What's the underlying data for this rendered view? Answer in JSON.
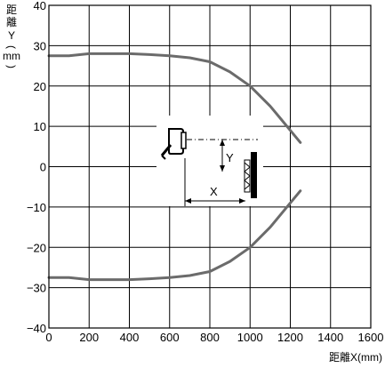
{
  "chart_data": {
    "type": "line",
    "title": "",
    "xlabel": "距離X(mm)",
    "ylabel_chars": [
      "距",
      "離",
      "Y",
      "(",
      "mm",
      ")"
    ],
    "xlim": [
      0,
      1600
    ],
    "ylim": [
      -40,
      40
    ],
    "x_ticks": [
      0,
      200,
      400,
      600,
      800,
      1000,
      1200,
      1400,
      1600
    ],
    "y_ticks": [
      40,
      30,
      20,
      10,
      0,
      -10,
      -20,
      -30,
      -40
    ],
    "y_tick_labels": [
      "40",
      "30",
      "20",
      "10",
      "0",
      "−10",
      "−20",
      "−30",
      "−40"
    ],
    "grid": true,
    "series": [
      {
        "color": "#6b6b6b",
        "points": [
          [
            0,
            27.5
          ],
          [
            100,
            27.5
          ],
          [
            200,
            28
          ],
          [
            300,
            28
          ],
          [
            400,
            28
          ],
          [
            500,
            27.8
          ],
          [
            600,
            27.5
          ],
          [
            700,
            27
          ],
          [
            800,
            26
          ],
          [
            900,
            23.5
          ],
          [
            1000,
            20
          ],
          [
            1100,
            15
          ],
          [
            1150,
            12
          ],
          [
            1200,
            9
          ],
          [
            1250,
            6
          ]
        ]
      },
      {
        "color": "#6b6b6b",
        "points": [
          [
            0,
            -27.5
          ],
          [
            100,
            -27.5
          ],
          [
            200,
            -28
          ],
          [
            300,
            -28
          ],
          [
            400,
            -28
          ],
          [
            500,
            -27.8
          ],
          [
            600,
            -27.5
          ],
          [
            700,
            -27
          ],
          [
            800,
            -26
          ],
          [
            900,
            -23.5
          ],
          [
            1000,
            -20
          ],
          [
            1100,
            -15
          ],
          [
            1150,
            -12
          ],
          [
            1200,
            -9
          ],
          [
            1250,
            -6
          ]
        ]
      }
    ],
    "annotations": {
      "y_label": "Y",
      "x_label": "X"
    }
  }
}
